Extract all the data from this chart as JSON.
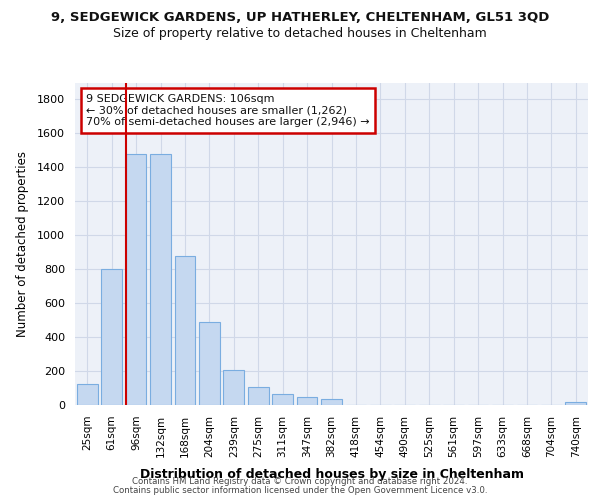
{
  "title_line1": "9, SEDGEWICK GARDENS, UP HATHERLEY, CHELTENHAM, GL51 3QD",
  "title_line2": "Size of property relative to detached houses in Cheltenham",
  "xlabel": "Distribution of detached houses by size in Cheltenham",
  "ylabel": "Number of detached properties",
  "footer_line1": "Contains HM Land Registry data © Crown copyright and database right 2024.",
  "footer_line2": "Contains public sector information licensed under the Open Government Licence v3.0.",
  "bar_labels": [
    "25sqm",
    "61sqm",
    "96sqm",
    "132sqm",
    "168sqm",
    "204sqm",
    "239sqm",
    "275sqm",
    "311sqm",
    "347sqm",
    "382sqm",
    "418sqm",
    "454sqm",
    "490sqm",
    "525sqm",
    "561sqm",
    "597sqm",
    "633sqm",
    "668sqm",
    "704sqm",
    "740sqm"
  ],
  "bar_values": [
    125,
    800,
    1480,
    1480,
    875,
    490,
    205,
    105,
    65,
    50,
    35,
    0,
    0,
    0,
    0,
    0,
    0,
    0,
    0,
    0,
    15
  ],
  "bar_color": "#c5d8f0",
  "bar_edge_color": "#7aade0",
  "grid_color": "#d0d8e8",
  "vline_x": 2.0,
  "vline_color": "#cc0000",
  "annotation_text": "9 SEDGEWICK GARDENS: 106sqm\n← 30% of detached houses are smaller (1,262)\n70% of semi-detached houses are larger (2,946) →",
  "annotation_box_facecolor": "#ffffff",
  "annotation_box_edgecolor": "#cc0000",
  "ylim": [
    0,
    1900
  ],
  "yticks": [
    0,
    200,
    400,
    600,
    800,
    1000,
    1200,
    1400,
    1600,
    1800
  ],
  "bg_color": "#ffffff",
  "plot_bg_color": "#edf1f8"
}
